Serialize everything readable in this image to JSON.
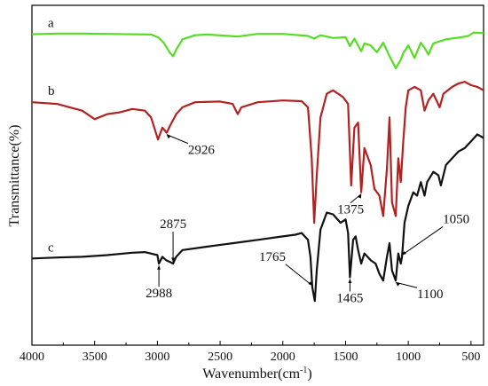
{
  "chart_data": {
    "type": "line",
    "title": "",
    "xlabel": "Wavenumber(cm",
    "xlabel_sup": "-1",
    "xlabel_close": ")",
    "ylabel": "Transmittance(%)",
    "xlim": [
      4000,
      400
    ],
    "x_reversed": true,
    "x_ticks": [
      4000,
      3500,
      3000,
      2500,
      2000,
      1500,
      1000,
      500
    ],
    "y_tick_labels": false,
    "grid": false,
    "legend": "none",
    "series": [
      {
        "name": "a",
        "color": "#55dd22",
        "points": [
          [
            4000,
            0.085
          ],
          [
            3800,
            0.083
          ],
          [
            3600,
            0.083
          ],
          [
            3400,
            0.084
          ],
          [
            3200,
            0.085
          ],
          [
            3050,
            0.086
          ],
          [
            2990,
            0.095
          ],
          [
            2950,
            0.11
          ],
          [
            2900,
            0.14
          ],
          [
            2875,
            0.15
          ],
          [
            2850,
            0.13
          ],
          [
            2800,
            0.1
          ],
          [
            2700,
            0.088
          ],
          [
            2600,
            0.086
          ],
          [
            2360,
            0.092
          ],
          [
            2200,
            0.084
          ],
          [
            2000,
            0.084
          ],
          [
            1800,
            0.09
          ],
          [
            1750,
            0.098
          ],
          [
            1700,
            0.088
          ],
          [
            1600,
            0.096
          ],
          [
            1500,
            0.094
          ],
          [
            1465,
            0.12
          ],
          [
            1430,
            0.098
          ],
          [
            1375,
            0.135
          ],
          [
            1350,
            0.112
          ],
          [
            1300,
            0.118
          ],
          [
            1250,
            0.138
          ],
          [
            1200,
            0.11
          ],
          [
            1150,
            0.15
          ],
          [
            1100,
            0.185
          ],
          [
            1060,
            0.16
          ],
          [
            1040,
            0.14
          ],
          [
            1000,
            0.118
          ],
          [
            950,
            0.155
          ],
          [
            900,
            0.11
          ],
          [
            870,
            0.125
          ],
          [
            840,
            0.145
          ],
          [
            800,
            0.112
          ],
          [
            700,
            0.1
          ],
          [
            600,
            0.095
          ],
          [
            520,
            0.09
          ],
          [
            480,
            0.08
          ],
          [
            400,
            0.082
          ]
        ]
      },
      {
        "name": "b",
        "color": "#b22222",
        "points": [
          [
            4000,
            0.285
          ],
          [
            3800,
            0.29
          ],
          [
            3700,
            0.3
          ],
          [
            3600,
            0.31
          ],
          [
            3500,
            0.335
          ],
          [
            3400,
            0.32
          ],
          [
            3300,
            0.315
          ],
          [
            3200,
            0.305
          ],
          [
            3100,
            0.31
          ],
          [
            3050,
            0.33
          ],
          [
            2995,
            0.395
          ],
          [
            2960,
            0.36
          ],
          [
            2926,
            0.375
          ],
          [
            2900,
            0.355
          ],
          [
            2850,
            0.32
          ],
          [
            2800,
            0.3
          ],
          [
            2700,
            0.285
          ],
          [
            2500,
            0.283
          ],
          [
            2400,
            0.29
          ],
          [
            2360,
            0.32
          ],
          [
            2330,
            0.3
          ],
          [
            2200,
            0.285
          ],
          [
            2000,
            0.28
          ],
          [
            1850,
            0.282
          ],
          [
            1800,
            0.3
          ],
          [
            1770,
            0.45
          ],
          [
            1750,
            0.64
          ],
          [
            1730,
            0.5
          ],
          [
            1700,
            0.33
          ],
          [
            1650,
            0.26
          ],
          [
            1600,
            0.25
          ],
          [
            1520,
            0.27
          ],
          [
            1480,
            0.29
          ],
          [
            1455,
            0.53
          ],
          [
            1430,
            0.36
          ],
          [
            1400,
            0.345
          ],
          [
            1375,
            0.55
          ],
          [
            1350,
            0.42
          ],
          [
            1300,
            0.47
          ],
          [
            1270,
            0.54
          ],
          [
            1230,
            0.56
          ],
          [
            1200,
            0.62
          ],
          [
            1170,
            0.48
          ],
          [
            1150,
            0.33
          ],
          [
            1130,
            0.58
          ],
          [
            1100,
            0.62
          ],
          [
            1080,
            0.45
          ],
          [
            1060,
            0.52
          ],
          [
            1040,
            0.4
          ],
          [
            1020,
            0.3
          ],
          [
            1000,
            0.25
          ],
          [
            950,
            0.24
          ],
          [
            900,
            0.25
          ],
          [
            870,
            0.31
          ],
          [
            840,
            0.28
          ],
          [
            800,
            0.26
          ],
          [
            750,
            0.3
          ],
          [
            720,
            0.26
          ],
          [
            650,
            0.24
          ],
          [
            600,
            0.23
          ],
          [
            550,
            0.225
          ],
          [
            500,
            0.235
          ],
          [
            450,
            0.24
          ],
          [
            400,
            0.25
          ]
        ]
      },
      {
        "name": "c",
        "color": "#111111",
        "points": [
          [
            4000,
            0.745
          ],
          [
            3800,
            0.742
          ],
          [
            3600,
            0.74
          ],
          [
            3400,
            0.735
          ],
          [
            3200,
            0.728
          ],
          [
            3100,
            0.726
          ],
          [
            3000,
            0.735
          ],
          [
            2988,
            0.76
          ],
          [
            2960,
            0.74
          ],
          [
            2930,
            0.75
          ],
          [
            2900,
            0.755
          ],
          [
            2875,
            0.76
          ],
          [
            2850,
            0.74
          ],
          [
            2800,
            0.72
          ],
          [
            2600,
            0.71
          ],
          [
            2400,
            0.7
          ],
          [
            2200,
            0.69
          ],
          [
            2000,
            0.68
          ],
          [
            1900,
            0.675
          ],
          [
            1850,
            0.67
          ],
          [
            1800,
            0.69
          ],
          [
            1780,
            0.74
          ],
          [
            1765,
            0.83
          ],
          [
            1745,
            0.87
          ],
          [
            1730,
            0.78
          ],
          [
            1700,
            0.66
          ],
          [
            1650,
            0.61
          ],
          [
            1600,
            0.615
          ],
          [
            1540,
            0.64
          ],
          [
            1500,
            0.63
          ],
          [
            1480,
            0.67
          ],
          [
            1465,
            0.8
          ],
          [
            1440,
            0.69
          ],
          [
            1420,
            0.68
          ],
          [
            1400,
            0.72
          ],
          [
            1375,
            0.76
          ],
          [
            1350,
            0.73
          ],
          [
            1300,
            0.75
          ],
          [
            1260,
            0.76
          ],
          [
            1230,
            0.79
          ],
          [
            1200,
            0.81
          ],
          [
            1170,
            0.74
          ],
          [
            1150,
            0.7
          ],
          [
            1130,
            0.78
          ],
          [
            1100,
            0.81
          ],
          [
            1080,
            0.73
          ],
          [
            1060,
            0.76
          ],
          [
            1050,
            0.74
          ],
          [
            1030,
            0.64
          ],
          [
            1000,
            0.59
          ],
          [
            960,
            0.55
          ],
          [
            930,
            0.56
          ],
          [
            900,
            0.52
          ],
          [
            870,
            0.56
          ],
          [
            850,
            0.52
          ],
          [
            800,
            0.49
          ],
          [
            760,
            0.5
          ],
          [
            740,
            0.53
          ],
          [
            700,
            0.47
          ],
          [
            650,
            0.45
          ],
          [
            600,
            0.43
          ],
          [
            550,
            0.42
          ],
          [
            500,
            0.4
          ],
          [
            450,
            0.38
          ],
          [
            400,
            0.39
          ]
        ]
      }
    ],
    "series_labels": [
      "a",
      "b",
      "c"
    ],
    "annotations": [
      {
        "text": "2926",
        "x": 2926,
        "y": 0.375
      },
      {
        "text": "1375",
        "x": 1375,
        "y": 0.55
      },
      {
        "text": "2875",
        "x": 2875,
        "y": 0.76
      },
      {
        "text": "2988",
        "x": 2988,
        "y": 0.76
      },
      {
        "text": "1765",
        "x": 1765,
        "y": 0.83
      },
      {
        "text": "1465",
        "x": 1465,
        "y": 0.8
      },
      {
        "text": "1050",
        "x": 1050,
        "y": 0.74
      },
      {
        "text": "1100",
        "x": 1100,
        "y": 0.81
      }
    ]
  }
}
